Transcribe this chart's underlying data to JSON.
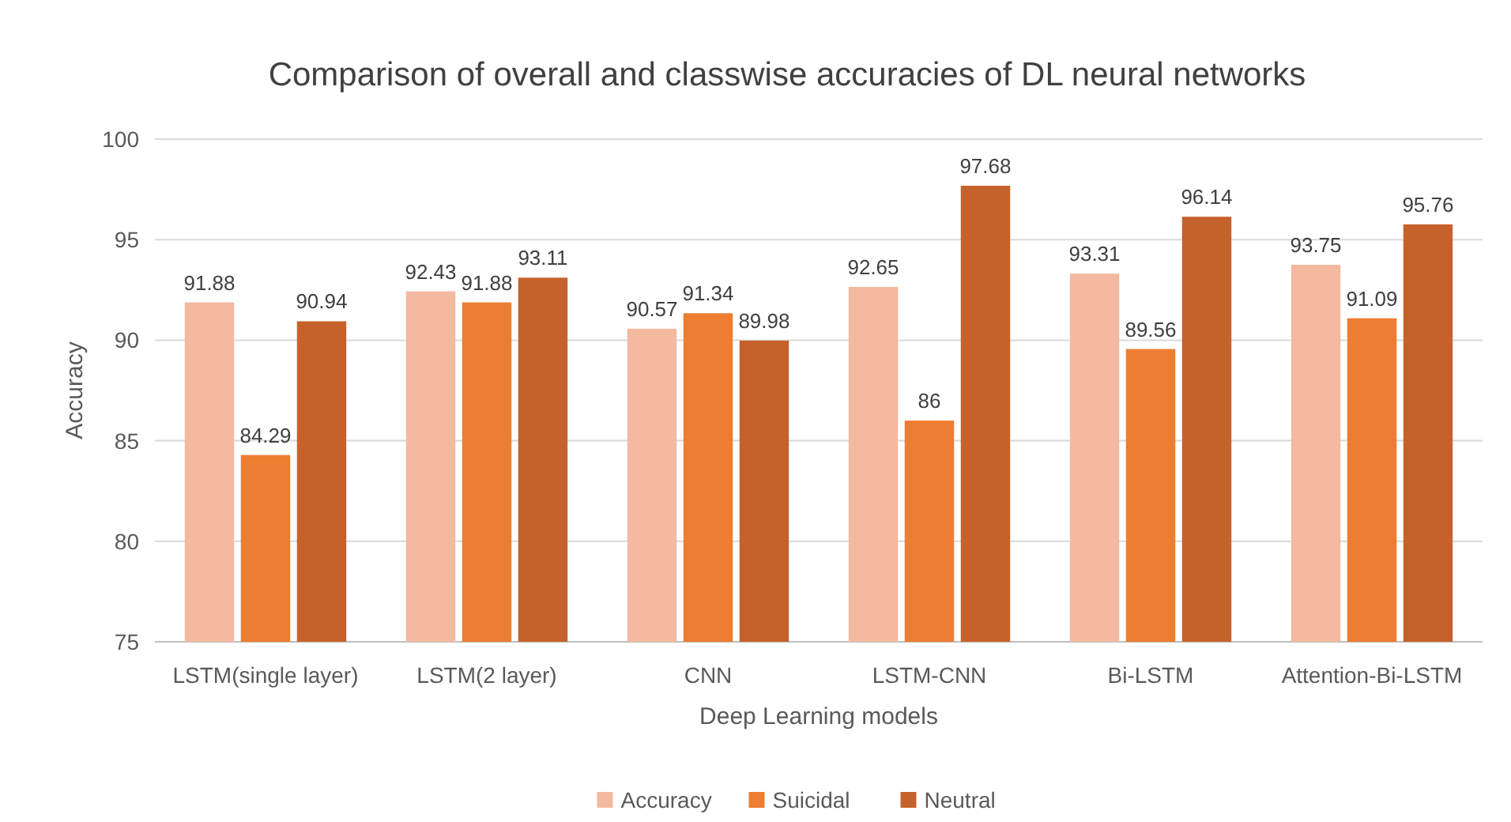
{
  "chart_data": {
    "type": "bar",
    "title": "Comparison of overall and classwise accuracies of DL neural networks",
    "xlabel": "Deep Learning models",
    "ylabel": "Accuracy",
    "categories": [
      "LSTM(single layer)",
      "LSTM(2 layer)",
      "CNN",
      "LSTM-CNN",
      "Bi-LSTM",
      "Attention-Bi-LSTM"
    ],
    "series": [
      {
        "name": "Accuracy",
        "color": "#f4b9a1",
        "values": [
          91.88,
          92.43,
          90.57,
          92.65,
          93.31,
          93.75
        ]
      },
      {
        "name": "Suicidal",
        "color": "#ed7d31",
        "values": [
          84.29,
          91.88,
          91.34,
          86,
          89.56,
          91.09
        ]
      },
      {
        "name": "Neutral",
        "color": "#c5622b",
        "values": [
          90.94,
          93.11,
          89.98,
          97.68,
          96.14,
          95.76
        ]
      }
    ],
    "ylim": [
      75,
      100
    ],
    "yticks": [
      75,
      80,
      85,
      90,
      95,
      100
    ],
    "grid": "y",
    "data_labels": true,
    "legend": "bottom"
  }
}
